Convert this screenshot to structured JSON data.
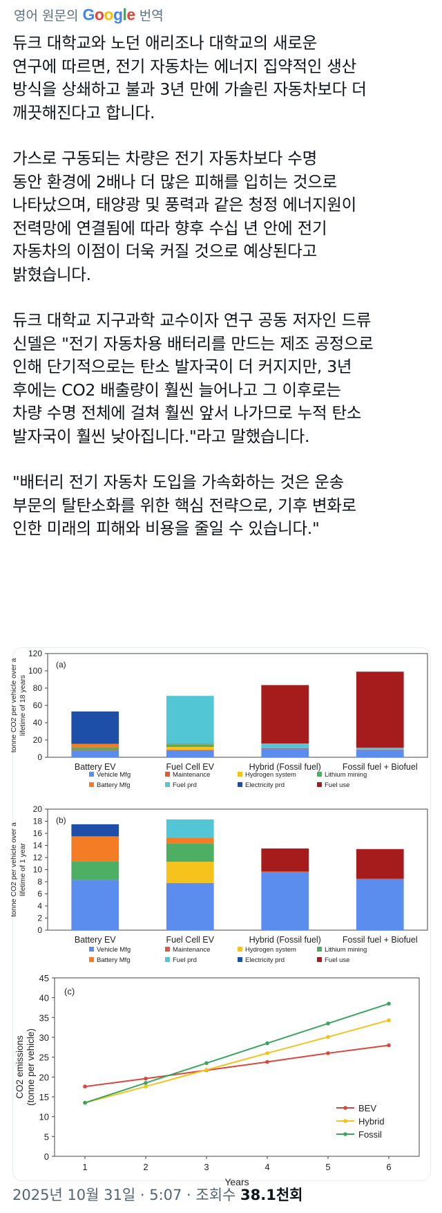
{
  "translate_bar": {
    "prefix": "영어 원문의",
    "brand": "Google",
    "suffix": "번역",
    "brand_colors": [
      "#4285F4",
      "#EA4335",
      "#FBBC05",
      "#4285F4",
      "#34A853",
      "#EA4335"
    ]
  },
  "tweet": {
    "paragraphs": [
      "듀크 대학교와 노던 애리조나 대학교의 새로운\n연구에 따르면, 전기 자동차는 에너지 집약적인 생산\n방식을 상쇄하고 불과 3년 만에 가솔린 자동차보다 더\n깨끗해진다고 합니다.",
      "가스로 구동되는 차량은 전기 자동차보다 수명\n동안 환경에 2배나 더 많은 피해를 입히는 것으로\n나타났으며, 태양광 및 풍력과 같은 청정 에너지원이\n전력망에 연결됨에 따라 향후 수십 년 안에 전기\n자동차의 이점이 더욱 커질 것으로 예상된다고\n밝혔습니다.",
      "듀크 대학교 지구과학 교수이자 연구 공동 저자인 드류\n신델은 \"전기 자동차용 배터리를 만드는 제조 공정으로\n인해 단기적으로는 탄소 발자국이 더 커지지만, 3년\n후에는 CO2 배출량이 훨씬 늘어나고 그 이후로는\n차량 수명 전체에 걸쳐 훨씬 앞서 나가므로 누적 탄소\n발자국이 훨씬 낮아집니다.\"라고 말했습니다.",
      "\"배터리 전기 자동차 도입을 가속화하는 것은 운송\n부문의 탈탄소화를 위한 핵심 전략으로, 기후 변화로\n인한 미래의 피해와 비용을 줄일 수 있습니다.\""
    ]
  },
  "meta": {
    "date": "2025년 10월 31일 · 5:07 · 조회수 ",
    "views": "38.1천회"
  },
  "chart_data": [
    {
      "type": "bar",
      "stacked": true,
      "panel_label": "(a)",
      "ylabel": "tonne CO2 per vehicle over a lifetime of 18 years",
      "ylim": [
        0,
        120
      ],
      "yticks": [
        0,
        20,
        40,
        60,
        80,
        100,
        120
      ],
      "categories": [
        "Battery EV",
        "Fuel Cell EV",
        "Hybrid (Fossil fuel)",
        "Fossil fuel + Biofuel"
      ],
      "series": [
        {
          "name": "Vehicle Mfg",
          "color": "#5b8def",
          "values": [
            8,
            8,
            10,
            8.5
          ]
        },
        {
          "name": "Maintenance",
          "color": "#d95f3b",
          "values": [
            0.5,
            0.5,
            0.5,
            0.5
          ]
        },
        {
          "name": "Hydrogen system",
          "color": "#f6c21c",
          "values": [
            0,
            3.5,
            0,
            0
          ]
        },
        {
          "name": "Lithium mining",
          "color": "#4caf64",
          "values": [
            3,
            3,
            0.5,
            0
          ]
        },
        {
          "name": "Battery Mfg",
          "color": "#f47c25",
          "values": [
            4,
            1,
            0,
            0
          ]
        },
        {
          "name": "Fuel prd",
          "color": "#52c6d4",
          "values": [
            0,
            55,
            5,
            2
          ]
        },
        {
          "name": "Electricity prd",
          "color": "#1d4fa8",
          "values": [
            37.5,
            0,
            0,
            0
          ]
        },
        {
          "name": "Fuel use",
          "color": "#a61c1c",
          "values": [
            0,
            0,
            67.5,
            88
          ]
        }
      ]
    },
    {
      "type": "bar",
      "stacked": true,
      "panel_label": "(b)",
      "ylabel": "tonne CO2 per vehicle over a lifetime of 1 year",
      "ylim": [
        0,
        20
      ],
      "yticks": [
        0,
        2,
        4,
        6,
        8,
        10,
        12,
        14,
        16,
        18,
        20
      ],
      "categories": [
        "Battery EV",
        "Fuel Cell EV",
        "Hybrid (Fossil fuel)",
        "Fossil fuel + Biofuel"
      ],
      "series": [
        {
          "name": "Vehicle Mfg",
          "color": "#5b8def",
          "values": [
            8.3,
            7.8,
            9.5,
            8.4
          ]
        },
        {
          "name": "Maintenance",
          "color": "#d95f3b",
          "values": [
            0,
            0,
            0.2,
            0.1
          ]
        },
        {
          "name": "Hydrogen system",
          "color": "#f6c21c",
          "values": [
            0,
            3.5,
            0,
            0
          ]
        },
        {
          "name": "Lithium mining",
          "color": "#4caf64",
          "values": [
            3.1,
            3,
            0,
            0
          ]
        },
        {
          "name": "Battery Mfg",
          "color": "#f47c25",
          "values": [
            4.1,
            1,
            0,
            0
          ]
        },
        {
          "name": "Fuel prd",
          "color": "#52c6d4",
          "values": [
            0,
            3,
            0,
            0
          ]
        },
        {
          "name": "Electricity prd",
          "color": "#1d4fa8",
          "values": [
            2,
            0,
            0,
            0
          ]
        },
        {
          "name": "Fuel use",
          "color": "#a61c1c",
          "values": [
            0,
            0,
            3.8,
            4.9
          ]
        }
      ]
    },
    {
      "type": "line",
      "panel_label": "(c)",
      "xlabel": "Years",
      "ylabel": "CO2 emissions (tonne per vehicle)",
      "ylim": [
        0,
        45
      ],
      "yticks": [
        0,
        5,
        10,
        15,
        20,
        25,
        30,
        35,
        40,
        45
      ],
      "x": [
        1,
        2,
        3,
        4,
        5,
        6
      ],
      "legend_position": "bottom-right",
      "series": [
        {
          "name": "BEV",
          "color": "#d9473c",
          "values": [
            17.6,
            19.6,
            21.7,
            23.8,
            26.0,
            28.0
          ]
        },
        {
          "name": "Hybrid",
          "color": "#f2c31b",
          "values": [
            13.5,
            17.6,
            21.8,
            26.0,
            30.1,
            34.3
          ]
        },
        {
          "name": "Fossil",
          "color": "#3aa55d",
          "values": [
            13.5,
            18.5,
            23.5,
            28.5,
            33.5,
            38.5
          ]
        }
      ]
    }
  ]
}
